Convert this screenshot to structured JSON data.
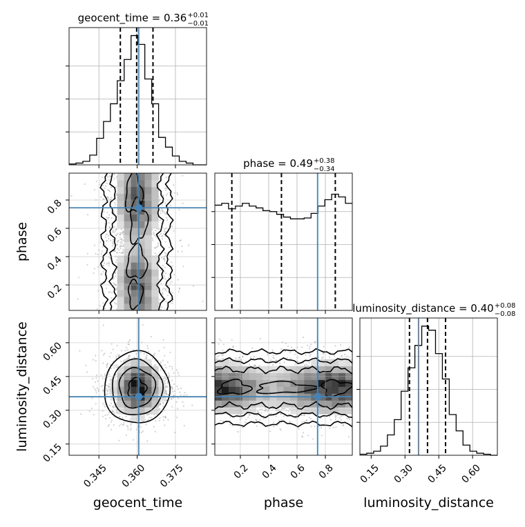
{
  "chart_data": {
    "type": "corner",
    "parameters": [
      "geocent_time",
      "phase",
      "luminosity_distance"
    ],
    "axis_labels": {
      "geocent_time": "geocent_time",
      "phase": "phase",
      "luminosity_distance": "luminosity_distance"
    },
    "ranges": {
      "geocent_time": [
        0.3333,
        0.3872
      ],
      "phase": [
        0.02,
        0.99
      ],
      "luminosity_distance": [
        0.1,
        0.71
      ]
    },
    "ticks": {
      "geocent_time": [
        "0.345",
        "0.360",
        "0.375"
      ],
      "phase": [
        "0.2",
        "0.4",
        "0.6",
        "0.8"
      ],
      "luminosity_distance": [
        "0.15",
        "0.30",
        "0.45",
        "0.60"
      ]
    },
    "truth": {
      "geocent_time": 0.3606,
      "phase": 0.745,
      "luminosity_distance": 0.36
    },
    "marginals": [
      {
        "parameter": "geocent_time",
        "title": "geocent_time = 0.36",
        "title_plus": "+0.01",
        "title_minus": "−0.01",
        "quantiles": [
          0.3534,
          0.3598,
          0.3662
        ],
        "hist_edges": [
          0.3333,
          0.336,
          0.3387,
          0.3414,
          0.3441,
          0.3468,
          0.3495,
          0.3522,
          0.3549,
          0.3576,
          0.3603,
          0.363,
          0.3657,
          0.3684,
          0.3711,
          0.3738,
          0.3765,
          0.3792,
          0.3819,
          0.3846,
          0.3872
        ],
        "hist_counts": [
          1,
          2,
          4,
          11,
          30,
          49,
          69,
          95,
          119,
          146,
          136,
          97,
          69,
          31,
          20,
          10,
          4,
          2,
          0,
          0
        ]
      },
      {
        "parameter": "phase",
        "title": "phase = 0.49",
        "title_plus": "+0.38",
        "title_minus": "−0.34",
        "quantiles": [
          0.14,
          0.49,
          0.87
        ],
        "hist_edges": [
          0.02,
          0.0685,
          0.117,
          0.1655,
          0.214,
          0.2625,
          0.311,
          0.3595,
          0.408,
          0.4565,
          0.505,
          0.5535,
          0.602,
          0.6505,
          0.699,
          0.7475,
          0.796,
          0.8445,
          0.893,
          0.9415,
          0.99
        ],
        "hist_counts": [
          115,
          117,
          111,
          114,
          117,
          114,
          112,
          109,
          108,
          105,
          102,
          100,
          100,
          101,
          106,
          114,
          121,
          127,
          124,
          117
        ]
      },
      {
        "parameter": "luminosity_distance",
        "title": "luminosity_distance = 0.40",
        "title_plus": "+0.08",
        "title_minus": "−0.08",
        "quantiles": [
          0.32,
          0.4,
          0.48
        ],
        "hist_edges": [
          0.1,
          0.1305,
          0.161,
          0.1915,
          0.222,
          0.2525,
          0.283,
          0.3135,
          0.344,
          0.3745,
          0.405,
          0.4355,
          0.466,
          0.4965,
          0.527,
          0.5575,
          0.588,
          0.6185,
          0.649,
          0.6795,
          0.71
        ],
        "hist_counts": [
          1,
          2,
          4,
          9,
          20,
          35,
          63,
          86,
          108,
          127,
          123,
          100,
          75,
          40,
          24,
          10,
          4,
          2,
          1,
          0
        ]
      }
    ],
    "joint_panels": [
      {
        "x": "geocent_time",
        "y": "phase"
      },
      {
        "x": "geocent_time",
        "y": "luminosity_distance"
      },
      {
        "x": "phase",
        "y": "luminosity_distance"
      }
    ]
  }
}
